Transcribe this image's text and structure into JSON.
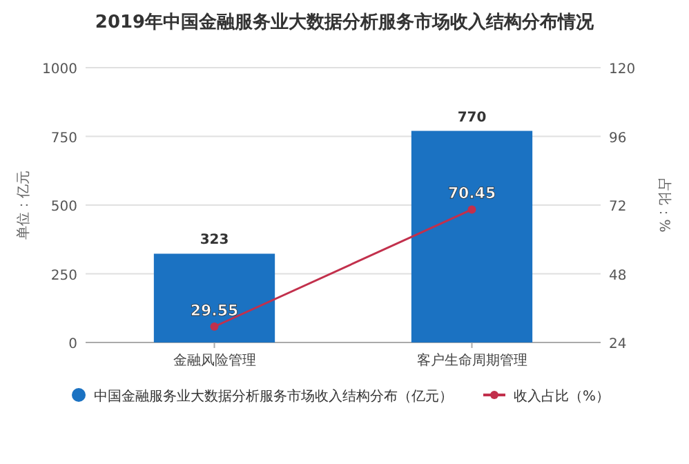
{
  "chart_data": {
    "type": "bar",
    "title": "2019年中国金融服务业大数据分析服务市场收入结构分布情况",
    "ylabel": "单位：亿元",
    "y2label": "占比：%",
    "categories": [
      "金融风险管理",
      "客户生命周期管理"
    ],
    "series": [
      {
        "name": "中国金融服务业大数据分析服务市场收入结构分布（亿元）",
        "color": "#1b72c2",
        "values": [
          323,
          770
        ]
      },
      {
        "name": "收入占比（%）",
        "type": "line",
        "axis": "y2",
        "color": "#c2304c",
        "marker": "circle",
        "values": [
          29.55,
          70.45
        ]
      }
    ],
    "ylim": [
      0,
      1000
    ],
    "yticks": [
      0,
      250,
      500,
      750,
      1000
    ],
    "y2lim": [
      24,
      120
    ],
    "y2ticks": [
      24,
      48,
      72,
      96,
      120
    ],
    "grid": "y",
    "legend": "bottom",
    "data_labels": true
  }
}
